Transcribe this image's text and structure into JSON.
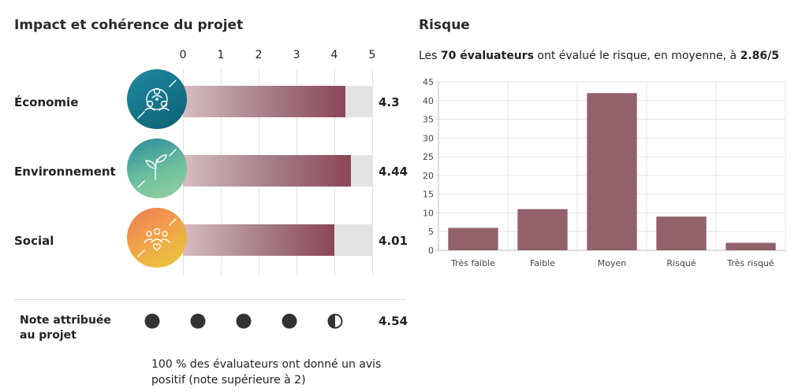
{
  "impact": {
    "title": "Impact et cohérence du projet",
    "axis_ticks": [
      "0",
      "1",
      "2",
      "3",
      "4",
      "5"
    ],
    "max": 5,
    "rows": [
      {
        "label": "Économie",
        "value": 4.3,
        "value_label": "4.3",
        "icon": "network-people-icon"
      },
      {
        "label": "Environnement",
        "value": 4.44,
        "value_label": "4.44",
        "icon": "sprout-icon"
      },
      {
        "label": "Social",
        "value": 4.01,
        "value_label": "4.01",
        "icon": "group-heart-icon"
      }
    ],
    "note": {
      "label": "Note attribuée au projet",
      "value": 4.54,
      "value_label": "4.54",
      "dots": [
        "full",
        "full",
        "full",
        "full",
        "half"
      ],
      "caption": "100 % des évaluateurs ont donné un avis positif (note supérieure à 2)"
    }
  },
  "risk": {
    "title": "Risque",
    "subtitle_prefix": "Les ",
    "subtitle_count": "70 évaluateurs",
    "subtitle_middle": " ont évalué le risque, en moyenne, à ",
    "subtitle_avg": "2.86/5"
  },
  "chart_data": [
    {
      "type": "bar",
      "orientation": "horizontal",
      "categories": [
        "Économie",
        "Environnement",
        "Social"
      ],
      "values": [
        4.3,
        4.44,
        4.01
      ],
      "title": "Impact et cohérence du projet",
      "xlim": [
        0,
        5
      ],
      "ticks": [
        0,
        1,
        2,
        3,
        4,
        5
      ]
    },
    {
      "type": "bar",
      "categories": [
        "Très faible",
        "Faible",
        "Moyen",
        "Risqué",
        "Très risqué"
      ],
      "values": [
        6,
        11,
        42,
        9,
        2
      ],
      "title": "Risque",
      "ylim": [
        0,
        45
      ],
      "yticks": [
        0,
        5,
        10,
        15,
        20,
        25,
        30,
        35,
        40,
        45
      ],
      "grid": true,
      "bar_color": "#93616b"
    }
  ]
}
